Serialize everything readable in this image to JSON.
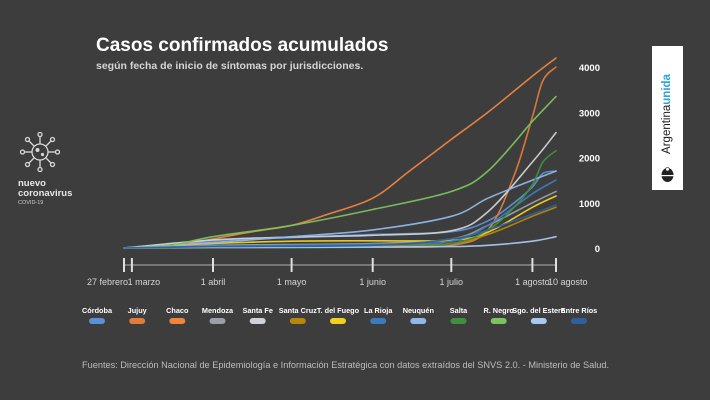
{
  "header": {
    "title": "Casos confirmados acumulados",
    "subtitle": "según fecha de inicio de síntomas por jurisdicciones."
  },
  "logo": {
    "icon": "virus-icon",
    "line1": "nuevo",
    "line2": "coronavirus",
    "line3": "COVID-19"
  },
  "brand": {
    "word1": "Argentina",
    "word2": "unida",
    "icon": "national-emblem-icon",
    "accent_color": "#2fa3d6"
  },
  "source": "Fuentes: Dirección Nacional de Epidemiología e Información Estratégica con datos extraídos del SNVS 2.0. - Ministerio de Salud.",
  "chart_data": {
    "type": "line",
    "x_tick_labels": [
      "27 febrero",
      "1 marzo",
      "1 abril",
      "1 mayo",
      "1 junio",
      "1 julio",
      "1 agosto",
      "10 agosto"
    ],
    "x_tick_dates": [
      "2020-02-27",
      "2020-03-01",
      "2020-04-01",
      "2020-05-01",
      "2020-06-01",
      "2020-07-01",
      "2020-08-01",
      "2020-08-10"
    ],
    "y_tick_labels": [
      "0",
      "1000",
      "2000",
      "3000",
      "4000"
    ],
    "ylim": [
      0,
      4200
    ],
    "grid": false,
    "legend_position": "bottom",
    "series": [
      {
        "name": "Córdoba",
        "color": "#5b8fd6",
        "points": [
          [
            "2020-02-27",
            0
          ],
          [
            "2020-03-15",
            20
          ],
          [
            "2020-04-01",
            160
          ],
          [
            "2020-05-01",
            230
          ],
          [
            "2020-06-01",
            300
          ],
          [
            "2020-07-01",
            360
          ],
          [
            "2020-07-15",
            600
          ],
          [
            "2020-07-25",
            1000
          ],
          [
            "2020-08-01",
            1350
          ],
          [
            "2020-08-05",
            1650
          ],
          [
            "2020-08-10",
            1700
          ]
        ]
      },
      {
        "name": "Jujuy",
        "color": "#e07b39",
        "points": [
          [
            "2020-02-27",
            0
          ],
          [
            "2020-04-01",
            10
          ],
          [
            "2020-06-01",
            20
          ],
          [
            "2020-07-01",
            60
          ],
          [
            "2020-07-15",
            400
          ],
          [
            "2020-07-25",
            1600
          ],
          [
            "2020-08-01",
            2900
          ],
          [
            "2020-08-05",
            3700
          ],
          [
            "2020-08-10",
            4000
          ]
        ]
      },
      {
        "name": "Chaco",
        "color": "#f0843c",
        "points": [
          [
            "2020-02-27",
            0
          ],
          [
            "2020-03-15",
            30
          ],
          [
            "2020-04-01",
            200
          ],
          [
            "2020-04-15",
            350
          ],
          [
            "2020-05-01",
            500
          ],
          [
            "2020-05-15",
            750
          ],
          [
            "2020-06-01",
            1100
          ],
          [
            "2020-06-15",
            1700
          ],
          [
            "2020-07-01",
            2400
          ],
          [
            "2020-07-15",
            3000
          ],
          [
            "2020-08-01",
            3800
          ],
          [
            "2020-08-10",
            4200
          ]
        ]
      },
      {
        "name": "Mendoza",
        "color": "#9aa0a6",
        "points": [
          [
            "2020-02-27",
            0
          ],
          [
            "2020-04-01",
            60
          ],
          [
            "2020-06-01",
            100
          ],
          [
            "2020-07-01",
            200
          ],
          [
            "2020-07-15",
            500
          ],
          [
            "2020-08-01",
            1000
          ],
          [
            "2020-08-10",
            1250
          ]
        ]
      },
      {
        "name": "Santa Fe",
        "color": "#cfd2d6",
        "points": [
          [
            "2020-02-27",
            0
          ],
          [
            "2020-04-01",
            180
          ],
          [
            "2020-05-01",
            240
          ],
          [
            "2020-06-01",
            280
          ],
          [
            "2020-07-01",
            380
          ],
          [
            "2020-07-15",
            800
          ],
          [
            "2020-08-01",
            1900
          ],
          [
            "2020-08-10",
            2550
          ]
        ]
      },
      {
        "name": "Santa Cruz",
        "color": "#b8860b",
        "points": [
          [
            "2020-02-27",
            0
          ],
          [
            "2020-04-01",
            20
          ],
          [
            "2020-06-01",
            40
          ],
          [
            "2020-07-01",
            100
          ],
          [
            "2020-07-15",
            300
          ],
          [
            "2020-08-01",
            700
          ],
          [
            "2020-08-10",
            900
          ]
        ]
      },
      {
        "name": "T. del Fuego",
        "color": "#f2d01c",
        "points": [
          [
            "2020-02-27",
            0
          ],
          [
            "2020-04-01",
            100
          ],
          [
            "2020-05-01",
            150
          ],
          [
            "2020-06-01",
            160
          ],
          [
            "2020-07-01",
            170
          ],
          [
            "2020-07-15",
            350
          ],
          [
            "2020-08-01",
            900
          ],
          [
            "2020-08-10",
            1150
          ]
        ]
      },
      {
        "name": "La Rioja",
        "color": "#3a7bbf",
        "points": [
          [
            "2020-02-27",
            0
          ],
          [
            "2020-04-01",
            40
          ],
          [
            "2020-06-01",
            80
          ],
          [
            "2020-07-01",
            150
          ],
          [
            "2020-07-15",
            500
          ],
          [
            "2020-08-01",
            1200
          ],
          [
            "2020-08-10",
            1500
          ]
        ]
      },
      {
        "name": "Neuquén",
        "color": "#8fb8e8",
        "points": [
          [
            "2020-02-27",
            0
          ],
          [
            "2020-04-01",
            120
          ],
          [
            "2020-05-01",
            250
          ],
          [
            "2020-06-01",
            400
          ],
          [
            "2020-07-01",
            700
          ],
          [
            "2020-07-15",
            1100
          ],
          [
            "2020-08-01",
            1500
          ],
          [
            "2020-08-10",
            1700
          ]
        ]
      },
      {
        "name": "Salta",
        "color": "#3f8f3f",
        "points": [
          [
            "2020-02-27",
            0
          ],
          [
            "2020-04-01",
            10
          ],
          [
            "2020-06-01",
            20
          ],
          [
            "2020-07-01",
            100
          ],
          [
            "2020-07-15",
            400
          ],
          [
            "2020-07-25",
            900
          ],
          [
            "2020-08-01",
            1400
          ],
          [
            "2020-08-05",
            1900
          ],
          [
            "2020-08-10",
            2150
          ]
        ]
      },
      {
        "name": "R. Negro",
        "color": "#7cc25d",
        "points": [
          [
            "2020-02-27",
            0
          ],
          [
            "2020-03-15",
            50
          ],
          [
            "2020-04-01",
            250
          ],
          [
            "2020-05-01",
            500
          ],
          [
            "2020-06-01",
            850
          ],
          [
            "2020-07-01",
            1250
          ],
          [
            "2020-07-15",
            1700
          ],
          [
            "2020-08-01",
            2800
          ],
          [
            "2020-08-10",
            3350
          ]
        ]
      },
      {
        "name": "Sgo. del Estero",
        "color": "#a9c8ee",
        "points": [
          [
            "2020-02-27",
            0
          ],
          [
            "2020-04-01",
            10
          ],
          [
            "2020-06-01",
            20
          ],
          [
            "2020-07-01",
            30
          ],
          [
            "2020-07-15",
            60
          ],
          [
            "2020-08-01",
            150
          ],
          [
            "2020-08-10",
            250
          ]
        ]
      },
      {
        "name": "Entre Ríos",
        "color": "#2f5f9f",
        "points": [
          [
            "2020-02-27",
            0
          ],
          [
            "2020-04-01",
            30
          ],
          [
            "2020-06-01",
            60
          ],
          [
            "2020-07-01",
            200
          ],
          [
            "2020-07-15",
            400
          ],
          [
            "2020-08-01",
            750
          ],
          [
            "2020-08-10",
            950
          ]
        ]
      }
    ]
  }
}
